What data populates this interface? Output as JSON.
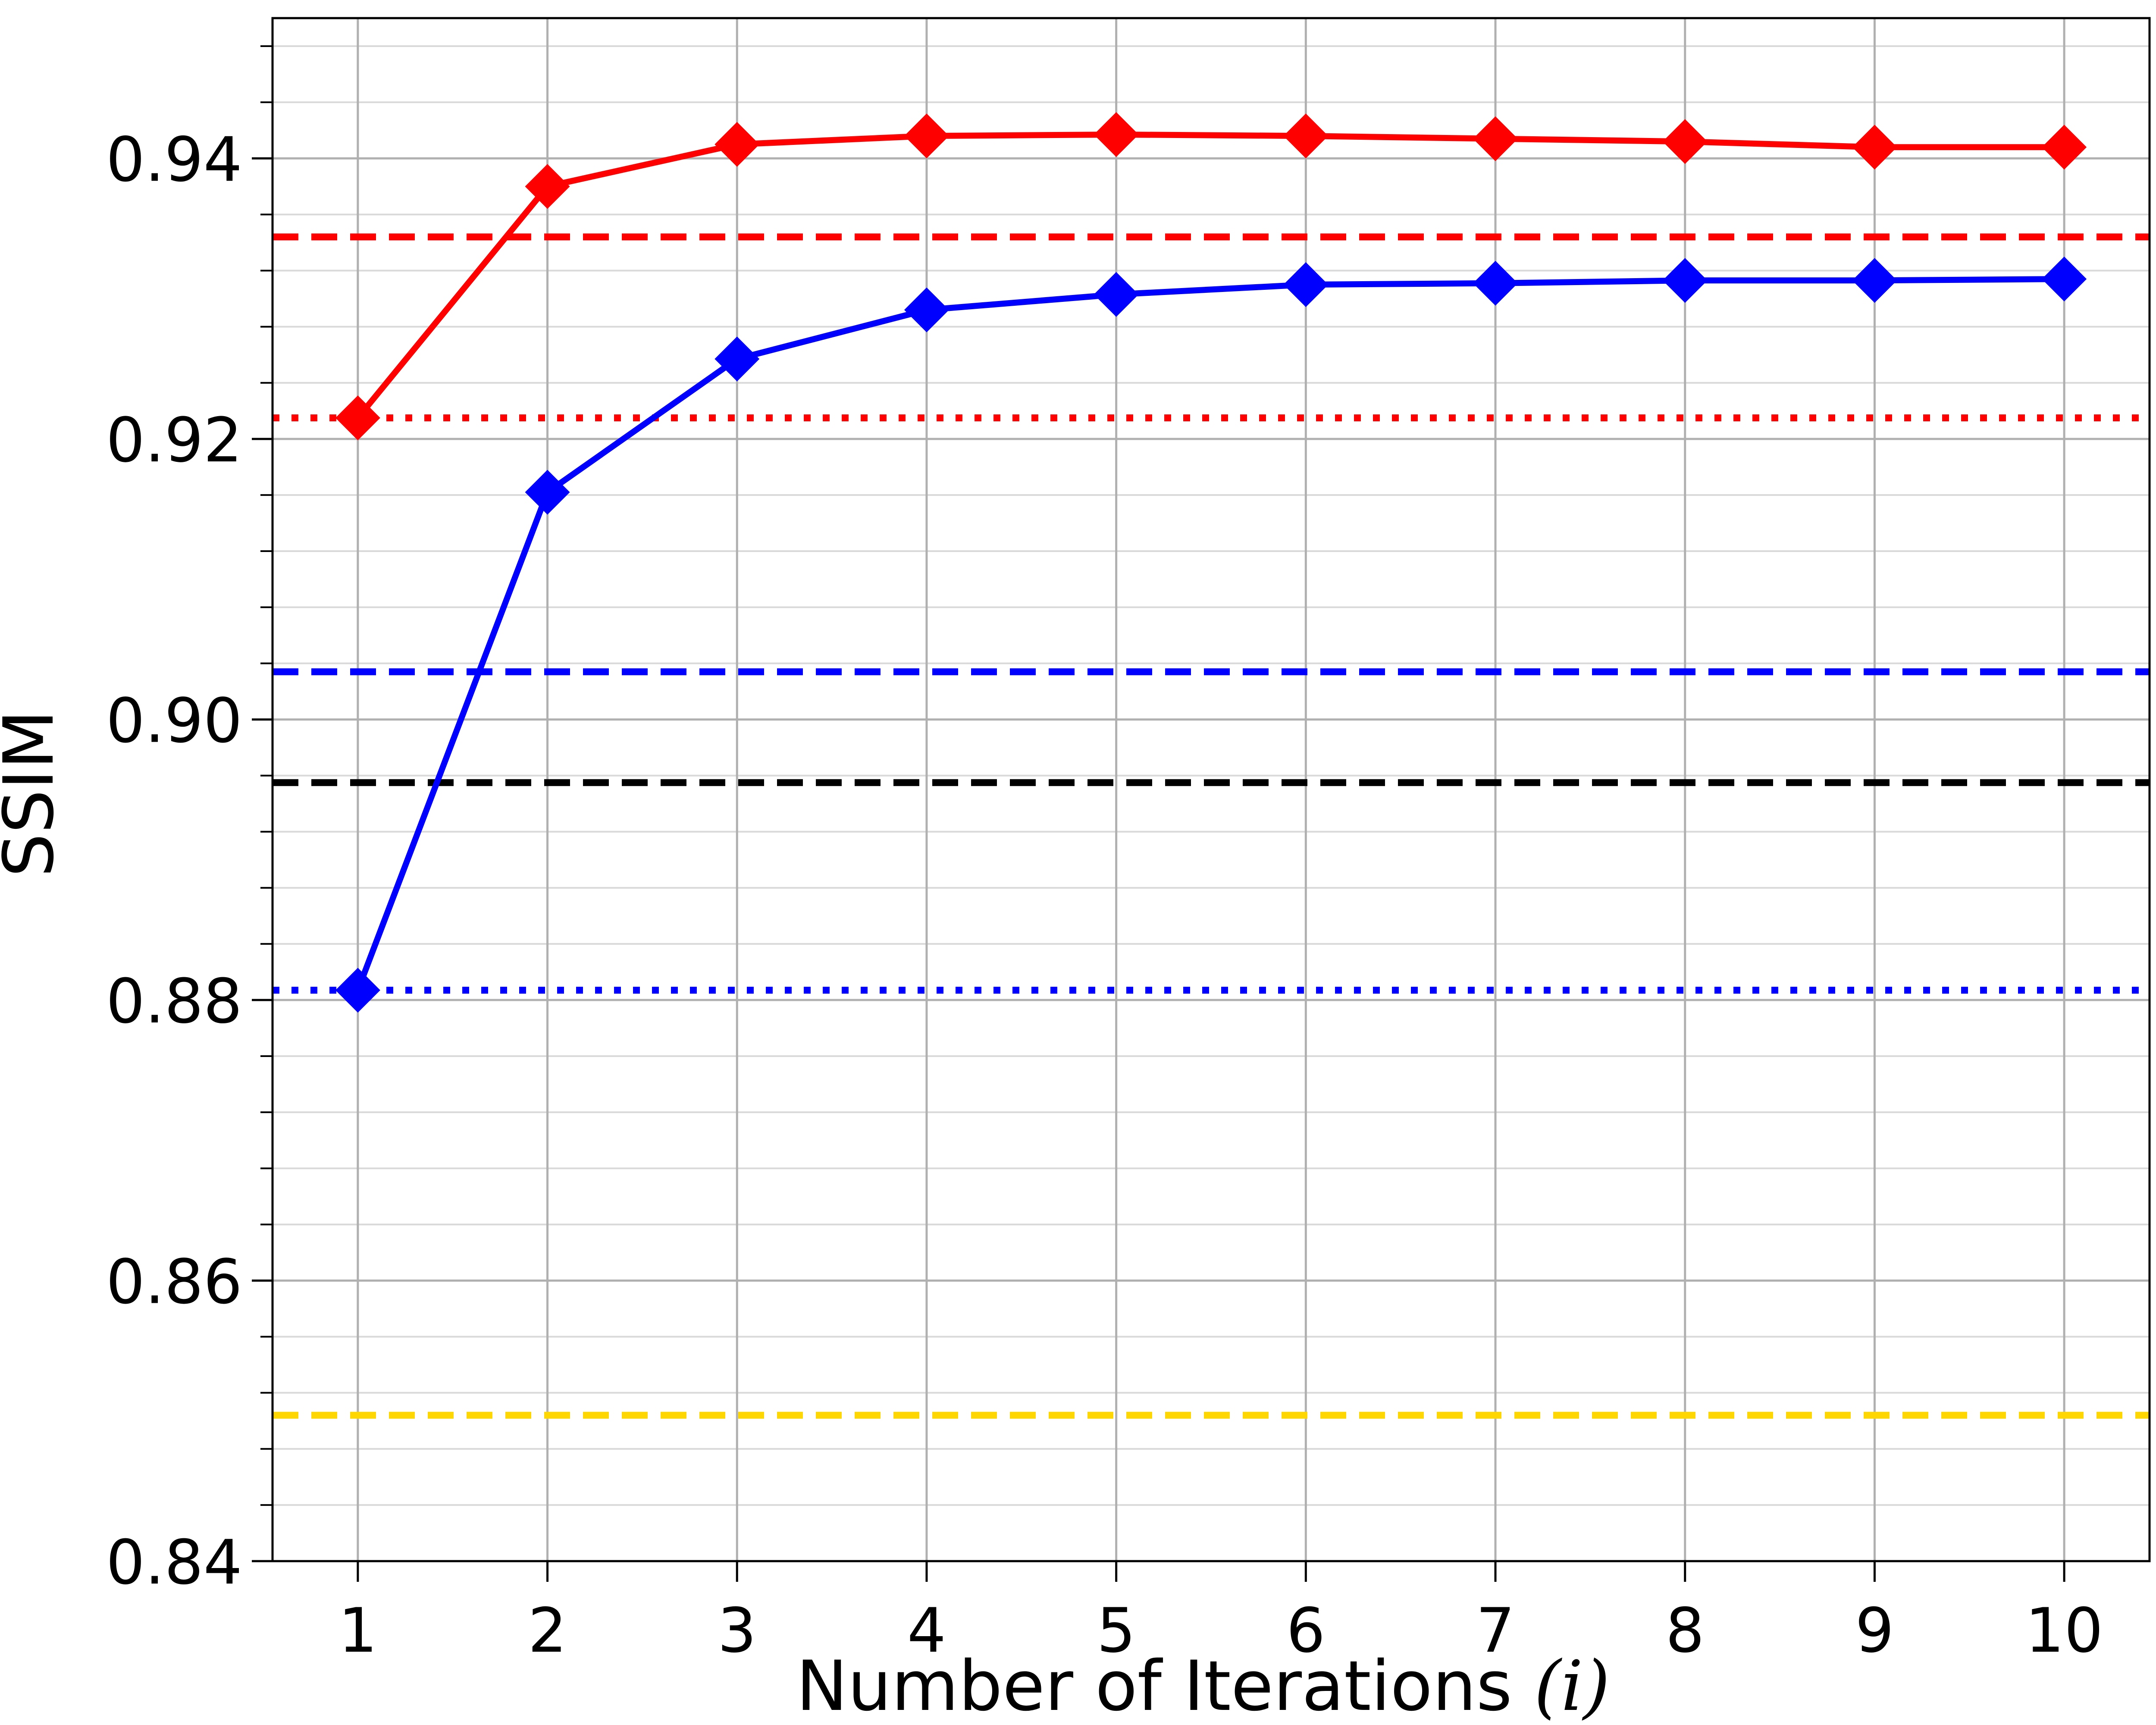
{
  "chart_data": {
    "type": "line",
    "title": "",
    "xlabel": "Number of Iterations",
    "xlabel_var": "(i)",
    "ylabel": "SSIM",
    "x": [
      1,
      2,
      3,
      4,
      5,
      6,
      7,
      8,
      9,
      10
    ],
    "xlim": [
      0.55,
      10.45
    ],
    "ylim": [
      0.84,
      0.95
    ],
    "xticks": [
      "1",
      "2",
      "3",
      "4",
      "5",
      "6",
      "7",
      "8",
      "9",
      "10"
    ],
    "yticks": [
      "0.84",
      "0.86",
      "0.88",
      "0.90",
      "0.92",
      "0.94"
    ],
    "grid": true,
    "legend": "none",
    "series": [
      {
        "color": "#ff0000",
        "marker": "diamond",
        "values": [
          0.9215,
          0.938,
          0.941,
          0.9416,
          0.9417,
          0.9416,
          0.9414,
          0.9412,
          0.9408,
          0.9408
        ]
      },
      {
        "color": "#0000ff",
        "marker": "diamond",
        "values": [
          0.8807,
          0.9162,
          0.9257,
          0.9292,
          0.9303,
          0.931,
          0.9311,
          0.9313,
          0.9313,
          0.9314
        ]
      }
    ],
    "reference_lines": [
      {
        "y": 0.9344,
        "color": "#ff0000",
        "style": "dashed"
      },
      {
        "y": 0.9215,
        "color": "#ff0000",
        "style": "dotted"
      },
      {
        "y": 0.9034,
        "color": "#0000ff",
        "style": "dashed"
      },
      {
        "y": 0.8955,
        "color": "#000000",
        "style": "dashed"
      },
      {
        "y": 0.8807,
        "color": "#0000ff",
        "style": "dotted"
      },
      {
        "y": 0.8504,
        "color": "#ffd700",
        "style": "dashed"
      }
    ]
  }
}
